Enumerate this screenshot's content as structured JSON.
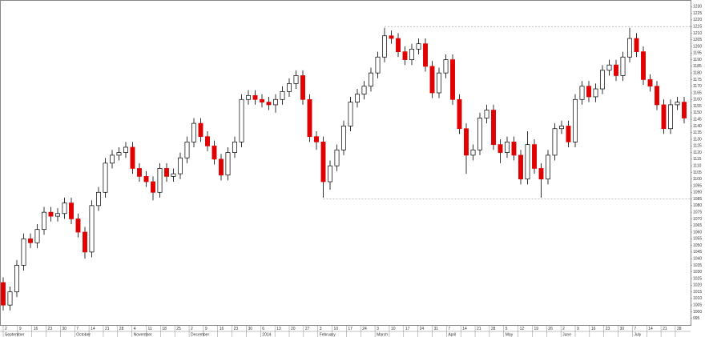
{
  "chart_data": {
    "type": "candlestick",
    "open": [
      1022,
      1005,
      1015,
      1035,
      1055,
      1052,
      1062,
      1075,
      1072,
      1074,
      1082,
      1070,
      1060,
      1045,
      1080,
      1090,
      1112,
      1118,
      1120,
      1124,
      1108,
      1102,
      1098,
      1090,
      1108,
      1102,
      1104,
      1116,
      1128,
      1142,
      1132,
      1125,
      1115,
      1103,
      1120,
      1128,
      1160,
      1163,
      1160,
      1158,
      1156,
      1160,
      1166,
      1172,
      1178,
      1160,
      1132,
      1128,
      1098,
      1110,
      1122,
      1140,
      1158,
      1164,
      1170,
      1180,
      1192,
      1208,
      1206,
      1196,
      1190,
      1198,
      1202,
      1185,
      1165,
      1180,
      1190,
      1160,
      1138,
      1118,
      1122,
      1146,
      1152,
      1126,
      1120,
      1128,
      1118,
      1100,
      1126,
      1108,
      1100,
      1118,
      1138,
      1140,
      1128,
      1160,
      1170,
      1162,
      1168,
      1182,
      1186,
      1178,
      1192,
      1206,
      1196,
      1175,
      1170,
      1156,
      1138,
      1156,
      1158
    ],
    "high": [
      1026,
      1019,
      1039,
      1059,
      1059,
      1066,
      1079,
      1079,
      1078,
      1086,
      1086,
      1074,
      1064,
      1084,
      1094,
      1116,
      1122,
      1124,
      1128,
      1128,
      1112,
      1106,
      1102,
      1112,
      1112,
      1108,
      1120,
      1132,
      1146,
      1146,
      1136,
      1129,
      1119,
      1124,
      1132,
      1164,
      1167,
      1167,
      1164,
      1162,
      1164,
      1170,
      1176,
      1182,
      1182,
      1164,
      1136,
      1132,
      1114,
      1126,
      1144,
      1162,
      1168,
      1174,
      1184,
      1196,
      1214,
      1212,
      1210,
      1200,
      1202,
      1206,
      1206,
      1189,
      1184,
      1194,
      1194,
      1164,
      1142,
      1126,
      1150,
      1156,
      1156,
      1130,
      1132,
      1132,
      1122,
      1136,
      1130,
      1112,
      1122,
      1142,
      1144,
      1144,
      1164,
      1174,
      1174,
      1172,
      1186,
      1190,
      1190,
      1196,
      1214,
      1210,
      1200,
      1179,
      1174,
      1160,
      1160,
      1162,
      1162
    ],
    "low": [
      1001,
      1001,
      1011,
      1031,
      1048,
      1048,
      1058,
      1068,
      1068,
      1070,
      1066,
      1056,
      1040,
      1041,
      1076,
      1086,
      1108,
      1114,
      1116,
      1104,
      1098,
      1094,
      1084,
      1086,
      1098,
      1098,
      1100,
      1112,
      1124,
      1128,
      1121,
      1111,
      1099,
      1099,
      1116,
      1124,
      1156,
      1156,
      1154,
      1152,
      1150,
      1156,
      1162,
      1168,
      1156,
      1128,
      1122,
      1086,
      1092,
      1106,
      1118,
      1136,
      1154,
      1160,
      1166,
      1176,
      1188,
      1202,
      1192,
      1186,
      1186,
      1194,
      1181,
      1161,
      1161,
      1176,
      1156,
      1134,
      1104,
      1114,
      1118,
      1142,
      1122,
      1112,
      1116,
      1114,
      1096,
      1096,
      1104,
      1086,
      1096,
      1114,
      1134,
      1124,
      1124,
      1156,
      1158,
      1158,
      1164,
      1178,
      1174,
      1174,
      1188,
      1192,
      1171,
      1166,
      1152,
      1134,
      1134,
      1152,
      1142
    ],
    "close": [
      1005,
      1015,
      1035,
      1055,
      1052,
      1062,
      1075,
      1072,
      1074,
      1082,
      1070,
      1060,
      1045,
      1080,
      1090,
      1112,
      1118,
      1120,
      1124,
      1108,
      1102,
      1098,
      1090,
      1108,
      1102,
      1104,
      1116,
      1128,
      1142,
      1132,
      1125,
      1115,
      1103,
      1120,
      1128,
      1160,
      1163,
      1160,
      1158,
      1156,
      1160,
      1166,
      1172,
      1178,
      1160,
      1132,
      1128,
      1098,
      1110,
      1122,
      1140,
      1158,
      1164,
      1170,
      1180,
      1192,
      1208,
      1206,
      1196,
      1190,
      1198,
      1202,
      1185,
      1165,
      1180,
      1190,
      1160,
      1138,
      1118,
      1122,
      1146,
      1152,
      1126,
      1120,
      1128,
      1118,
      1100,
      1126,
      1108,
      1100,
      1118,
      1138,
      1140,
      1128,
      1160,
      1170,
      1162,
      1168,
      1182,
      1186,
      1178,
      1192,
      1206,
      1196,
      1175,
      1170,
      1156,
      1138,
      1156,
      1158,
      1146
    ],
    "up_color": "#ffffff",
    "down_color": "#e00000",
    "ylim": [
      990,
      1235
    ],
    "yticks": [
      995,
      1000,
      1005,
      1010,
      1015,
      1020,
      1025,
      1030,
      1035,
      1040,
      1045,
      1050,
      1055,
      1060,
      1065,
      1070,
      1075,
      1080,
      1085,
      1090,
      1095,
      1100,
      1105,
      1110,
      1115,
      1120,
      1125,
      1130,
      1135,
      1140,
      1145,
      1150,
      1155,
      1160,
      1165,
      1170,
      1175,
      1180,
      1185,
      1190,
      1195,
      1200,
      1205,
      1210,
      1215,
      1220,
      1225,
      1230
    ],
    "xticks": [
      {
        "value": 0,
        "label": "2"
      },
      {
        "value": 2.1,
        "label": "9"
      },
      {
        "value": 4.2,
        "label": "16"
      },
      {
        "value": 6.3,
        "label": "23"
      },
      {
        "value": 8.4,
        "label": "30"
      },
      {
        "value": 10.5,
        "label": "7"
      },
      {
        "value": 12.6,
        "label": "14"
      },
      {
        "value": 14.7,
        "label": "21"
      },
      {
        "value": 16.8,
        "label": "28"
      },
      {
        "value": 18.9,
        "label": "4"
      },
      {
        "value": 21,
        "label": "11"
      },
      {
        "value": 23.1,
        "label": "18"
      },
      {
        "value": 25.2,
        "label": "25"
      },
      {
        "value": 27.3,
        "label": "2"
      },
      {
        "value": 29.4,
        "label": "9"
      },
      {
        "value": 31.5,
        "label": "16"
      },
      {
        "value": 33.6,
        "label": "23"
      },
      {
        "value": 35.7,
        "label": "30"
      },
      {
        "value": 37.8,
        "label": "6"
      },
      {
        "value": 39.9,
        "label": "13"
      },
      {
        "value": 42,
        "label": "20"
      },
      {
        "value": 44.1,
        "label": "27"
      },
      {
        "value": 46.2,
        "label": "3"
      },
      {
        "value": 48.3,
        "label": "10"
      },
      {
        "value": 50.4,
        "label": "17"
      },
      {
        "value": 52.5,
        "label": "24"
      },
      {
        "value": 54.6,
        "label": "3"
      },
      {
        "value": 56.7,
        "label": "10"
      },
      {
        "value": 58.8,
        "label": "17"
      },
      {
        "value": 60.9,
        "label": "24"
      },
      {
        "value": 63,
        "label": "31"
      },
      {
        "value": 65.1,
        "label": "7"
      },
      {
        "value": 67.2,
        "label": "14"
      },
      {
        "value": 69.3,
        "label": "21"
      },
      {
        "value": 71.4,
        "label": "28"
      },
      {
        "value": 73.5,
        "label": "5"
      },
      {
        "value": 75.6,
        "label": "12"
      },
      {
        "value": 77.7,
        "label": "19"
      },
      {
        "value": 79.8,
        "label": "26"
      },
      {
        "value": 81.9,
        "label": "2"
      },
      {
        "value": 84,
        "label": "9"
      },
      {
        "value": 86.1,
        "label": "16"
      },
      {
        "value": 88.2,
        "label": "23"
      },
      {
        "value": 90.3,
        "label": "30"
      },
      {
        "value": 92.4,
        "label": "7"
      },
      {
        "value": 94.5,
        "label": "14"
      },
      {
        "value": 96.6,
        "label": "21"
      },
      {
        "value": 98.7,
        "label": "28"
      }
    ],
    "month_labels": [
      {
        "value": 0,
        "label": "September"
      },
      {
        "value": 10.5,
        "label": "October"
      },
      {
        "value": 18.9,
        "label": "November"
      },
      {
        "value": 27.3,
        "label": "December"
      },
      {
        "value": 37.8,
        "label": "2014"
      },
      {
        "value": 46.2,
        "label": "February"
      },
      {
        "value": 54.6,
        "label": "March"
      },
      {
        "value": 65.1,
        "label": "April"
      },
      {
        "value": 73.5,
        "label": "May"
      },
      {
        "value": 81.9,
        "label": "June"
      },
      {
        "value": 92.4,
        "label": "July"
      }
    ],
    "hlines": [
      {
        "value": 1215,
        "from": 56
      },
      {
        "value": 1085,
        "from": 47
      }
    ]
  }
}
